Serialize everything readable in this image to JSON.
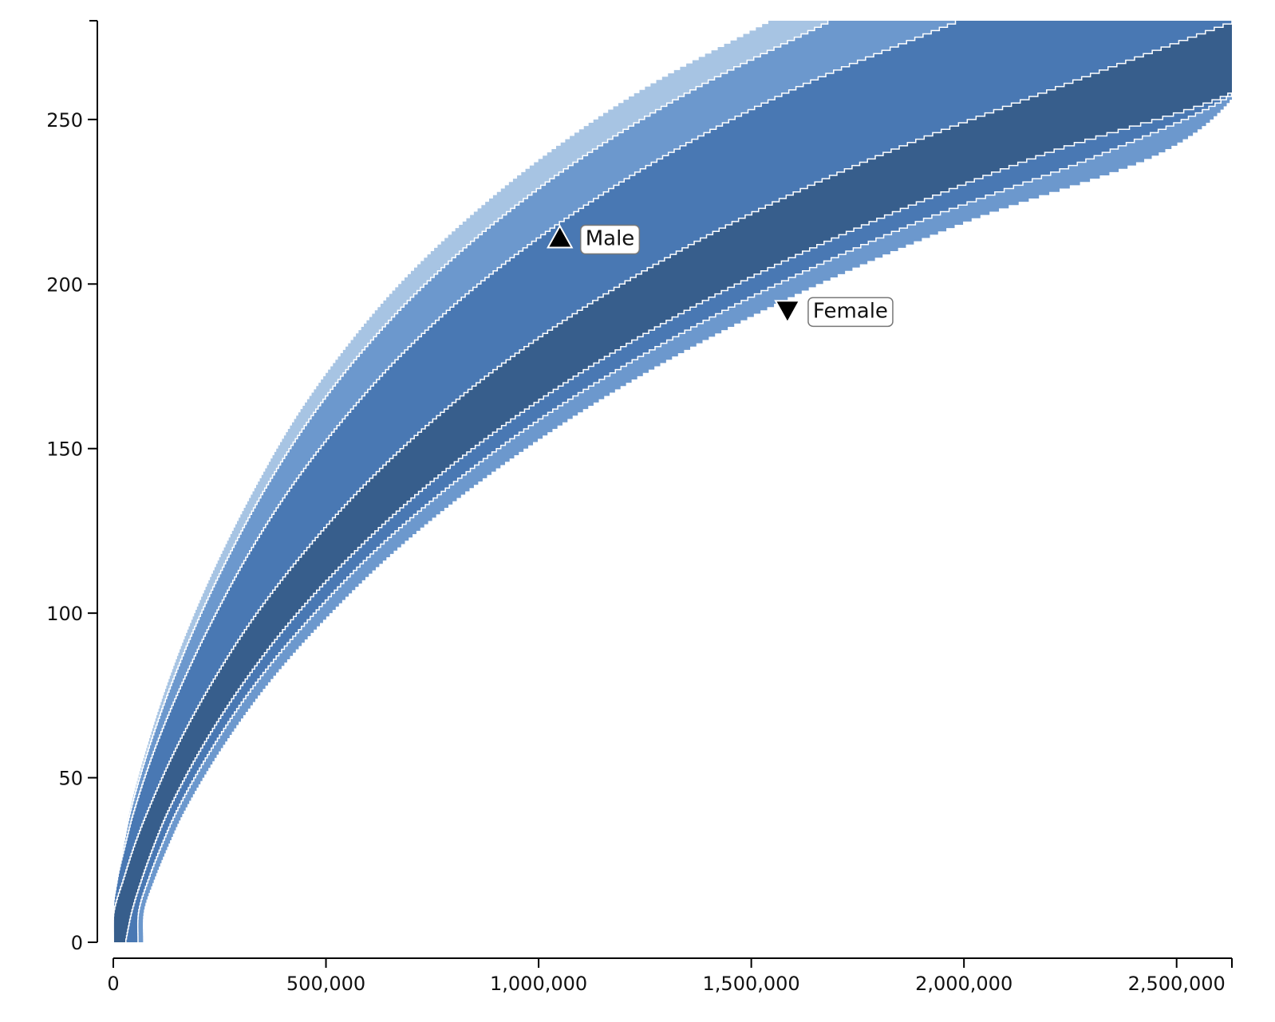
{
  "chart_data": {
    "type": "area",
    "title": "",
    "xlabel": "",
    "ylabel": "",
    "xlim": [
      0,
      2630000
    ],
    "ylim": [
      0,
      280
    ],
    "x_ticks": [
      0,
      500000,
      1000000,
      1500000,
      2000000,
      2500000
    ],
    "x_tick_labels": [
      "0",
      "500,000",
      "1,000,000",
      "1,500,000",
      "2,000,000",
      "2,500,000"
    ],
    "y_ticks": [
      0,
      50,
      100,
      150,
      200,
      250
    ],
    "y_tick_labels": [
      "0",
      "50",
      "100",
      "150",
      "200",
      "250"
    ],
    "grid": false,
    "band_colors": [
      "#a7c4e3",
      "#6c98cd",
      "#4978b3",
      "#375e8c"
    ],
    "y": [
      0,
      10,
      20,
      30,
      40,
      60,
      80,
      100,
      120,
      140,
      160,
      180,
      200,
      220,
      240,
      260,
      280
    ],
    "boundaries": [
      {
        "x": [
          0,
          0,
          12000,
          24000,
          38000,
          80000,
          130000,
          190000,
          260000,
          340000,
          430000,
          540000,
          670000,
          830000,
          1020000,
          1250000,
          1540000
        ]
      },
      {
        "x": [
          0,
          0,
          10000,
          24000,
          40000,
          85000,
          140000,
          205000,
          280000,
          365000,
          465000,
          585000,
          730000,
          905000,
          1115000,
          1370000,
          1680000
        ]
      },
      {
        "x": [
          0,
          0,
          10000,
          28000,
          48000,
          100000,
          165000,
          240000,
          325000,
          425000,
          545000,
          685000,
          855000,
          1060000,
          1305000,
          1605000,
          1980000
        ]
      },
      {
        "x": [
          0,
          2000,
          25000,
          50000,
          80000,
          150000,
          235000,
          335000,
          455000,
          595000,
          760000,
          955000,
          1190000,
          1470000,
          1810000,
          2215000,
          2630000
        ]
      },
      {
        "x": [
          28000,
          44000,
          68000,
          96000,
          128000,
          210000,
          310000,
          430000,
          575000,
          745000,
          945000,
          1180000,
          1460000,
          1795000,
          2190000,
          2650000,
          2700000
        ]
      },
      {
        "x": [
          58000,
          60000,
          84000,
          114000,
          148000,
          235000,
          340000,
          470000,
          620000,
          800000,
          1010000,
          1260000,
          1555000,
          1905000,
          2325000,
          2650000,
          2700000
        ]
      },
      {
        "x": [
          70000,
          72000,
          98000,
          130000,
          166000,
          258000,
          370000,
          508000,
          668000,
          858000,
          1080000,
          1342000,
          1652000,
          2018000,
          2458000,
          2650000,
          2700000
        ]
      }
    ],
    "markers": [
      {
        "label": "Male",
        "x": 1050000,
        "y": 214,
        "symbol": "triangle-up"
      },
      {
        "label": "Female",
        "x": 1585000,
        "y": 192,
        "symbol": "triangle-down"
      }
    ]
  }
}
